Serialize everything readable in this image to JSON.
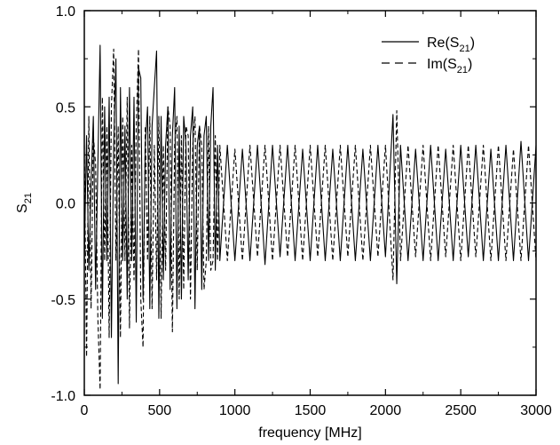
{
  "chart_data": {
    "type": "line",
    "title": "",
    "xlabel": "frequency [MHz]",
    "ylabel": {
      "base": "S",
      "sub": "21"
    },
    "xlim": [
      0,
      3000
    ],
    "ylim": [
      -1.0,
      1.0
    ],
    "xticks": [
      0,
      500,
      1000,
      1500,
      2000,
      2500,
      3000
    ],
    "xtick_labels": [
      "0",
      "500",
      "1000",
      "1500",
      "2000",
      "2500",
      "3000"
    ],
    "yticks": [
      -1.0,
      -0.5,
      0.0,
      0.5,
      1.0
    ],
    "ytick_labels": [
      "-1.0",
      "-0.5",
      "0.0",
      "0.5",
      "1.0"
    ],
    "grid": false,
    "legend_position": "top-right",
    "series": [
      {
        "name": "Re(S21)",
        "legend_base": "Re(S",
        "legend_sub": "21",
        "legend_tail": ")",
        "style": "solid",
        "color": "#000000",
        "x": [
          0,
          15,
          30,
          45,
          60,
          75,
          90,
          105,
          120,
          135,
          150,
          165,
          180,
          195,
          210,
          225,
          240,
          255,
          270,
          285,
          300,
          315,
          330,
          345,
          360,
          375,
          390,
          405,
          420,
          435,
          450,
          465,
          480,
          495,
          510,
          525,
          540,
          555,
          570,
          585,
          600,
          615,
          630,
          645,
          660,
          675,
          690,
          705,
          720,
          735,
          750,
          765,
          780,
          795,
          810,
          825,
          840,
          855,
          870,
          885,
          900,
          950,
          1000,
          1050,
          1100,
          1150,
          1200,
          1250,
          1300,
          1350,
          1400,
          1450,
          1500,
          1550,
          1600,
          1650,
          1700,
          1750,
          1800,
          1850,
          1900,
          1950,
          2000,
          2050,
          2075,
          2100,
          2150,
          2200,
          2250,
          2300,
          2350,
          2400,
          2450,
          2500,
          2550,
          2600,
          2650,
          2700,
          2750,
          2800,
          2850,
          2900,
          2950,
          3000
        ],
        "y": [
          -0.3,
          0.35,
          -0.35,
          0.1,
          0.45,
          -0.45,
          0.2,
          0.82,
          -0.6,
          0.5,
          -0.3,
          0.55,
          -0.7,
          0.3,
          0.75,
          -0.94,
          0.6,
          -0.3,
          0.4,
          -0.5,
          0.6,
          -0.3,
          0.55,
          -0.62,
          0.7,
          0.65,
          -0.5,
          0.3,
          0.5,
          -0.55,
          0.4,
          0.6,
          0.79,
          -0.6,
          0.45,
          -0.4,
          0.3,
          0.5,
          -0.45,
          0.35,
          0.6,
          -0.55,
          0.4,
          -0.5,
          0.45,
          0.3,
          -0.4,
          0.35,
          0.5,
          -0.55,
          0.3,
          0.4,
          -0.45,
          0.35,
          0.45,
          -0.3,
          0.4,
          0.6,
          -0.35,
          0.3,
          -0.3,
          0.3,
          -0.3,
          0.28,
          -0.3,
          0.3,
          -0.32,
          0.3,
          -0.28,
          0.3,
          -0.3,
          0.28,
          -0.3,
          0.3,
          -0.3,
          0.28,
          -0.3,
          0.3,
          -0.3,
          0.28,
          -0.3,
          0.3,
          -0.28,
          0.46,
          -0.42,
          0.3,
          -0.3,
          0.28,
          -0.3,
          0.3,
          -0.3,
          0.28,
          -0.3,
          0.3,
          -0.28,
          0.3,
          -0.3,
          0.28,
          -0.3,
          0.3,
          -0.3,
          0.32,
          -0.3,
          0.3
        ]
      },
      {
        "name": "Im(S21)",
        "legend_base": "Im(S",
        "legend_sub": "21",
        "legend_tail": ")",
        "style": "dashed",
        "color": "#000000",
        "x": [
          0,
          15,
          30,
          45,
          60,
          75,
          90,
          105,
          120,
          135,
          150,
          165,
          180,
          195,
          210,
          225,
          240,
          255,
          270,
          285,
          300,
          315,
          330,
          345,
          360,
          375,
          390,
          405,
          420,
          435,
          450,
          465,
          480,
          495,
          510,
          525,
          540,
          555,
          570,
          585,
          600,
          615,
          630,
          645,
          660,
          675,
          690,
          705,
          720,
          735,
          750,
          765,
          780,
          795,
          810,
          825,
          840,
          855,
          870,
          885,
          900,
          950,
          1000,
          1050,
          1100,
          1150,
          1200,
          1250,
          1300,
          1350,
          1400,
          1450,
          1500,
          1550,
          1600,
          1650,
          1700,
          1750,
          1800,
          1850,
          1900,
          1950,
          2000,
          2050,
          2075,
          2100,
          2150,
          2200,
          2250,
          2300,
          2350,
          2400,
          2450,
          2500,
          2550,
          2600,
          2650,
          2700,
          2750,
          2800,
          2850,
          2900,
          2950,
          3000
        ],
        "y": [
          0.3,
          -0.8,
          0.45,
          -0.55,
          0.35,
          0.2,
          -0.6,
          -0.97,
          0.55,
          -0.3,
          0.4,
          -0.7,
          0.5,
          0.8,
          -0.3,
          0.4,
          -0.7,
          0.45,
          -0.3,
          0.55,
          -0.65,
          0.3,
          -0.4,
          0.4,
          0.8,
          -0.5,
          -0.75,
          0.4,
          -0.3,
          0.45,
          -0.55,
          0.3,
          -0.4,
          0.45,
          -0.6,
          0.3,
          -0.35,
          0.5,
          0.4,
          -0.67,
          0.3,
          0.45,
          -0.5,
          0.35,
          -0.45,
          0.4,
          0.35,
          -0.5,
          0.3,
          0.45,
          -0.35,
          0.4,
          0.3,
          -0.45,
          -0.3,
          0.4,
          -0.35,
          -0.3,
          0.35,
          -0.3,
          0.3,
          -0.3,
          0.28,
          -0.3,
          0.3,
          -0.28,
          0.3,
          -0.3,
          0.3,
          -0.28,
          0.3,
          -0.3,
          0.3,
          -0.28,
          0.3,
          -0.3,
          0.3,
          -0.28,
          0.3,
          -0.3,
          0.3,
          -0.28,
          0.3,
          -0.4,
          0.48,
          -0.3,
          0.3,
          -0.28,
          0.3,
          -0.3,
          0.3,
          -0.28,
          0.3,
          -0.3,
          0.3,
          -0.28,
          0.3,
          -0.3,
          0.3,
          -0.3,
          0.28,
          -0.3,
          0.3,
          -0.3
        ]
      }
    ]
  }
}
